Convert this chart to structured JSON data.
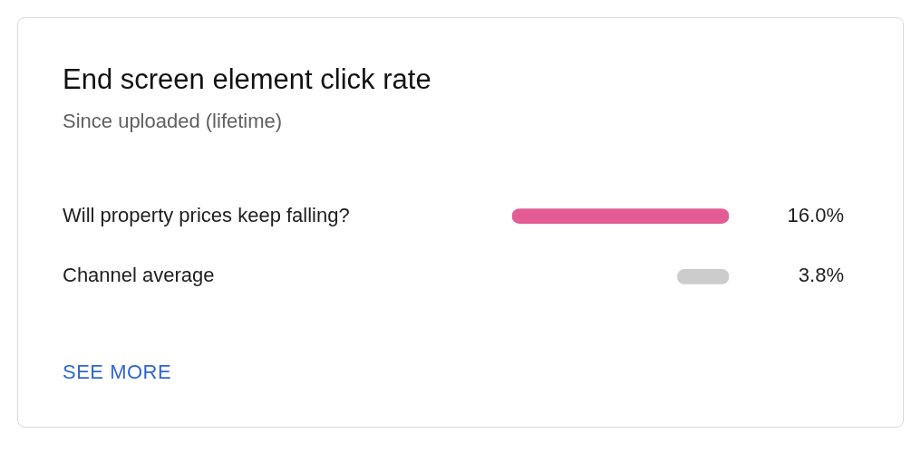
{
  "chart_data": {
    "type": "bar",
    "orientation": "horizontal",
    "title": "End screen element click rate",
    "subtitle": "Since uploaded (lifetime)",
    "categories": [
      "Will property prices keep falling?",
      "Channel average"
    ],
    "values": [
      16.0,
      3.8
    ],
    "colors": [
      "#e35d94",
      "#cccccc"
    ],
    "value_labels": [
      "16.0%",
      "3.8%"
    ],
    "annotations": [
      "SEE MORE"
    ]
  }
}
